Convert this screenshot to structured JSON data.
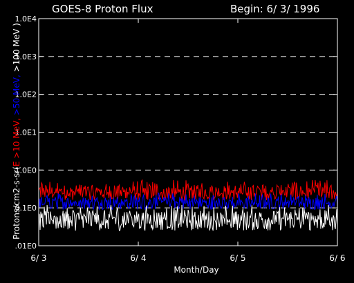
{
  "header": {
    "title": "GOES-8 Proton Flux",
    "begin_label": "Begin: 6/ 3/ 1996"
  },
  "chart_data": {
    "type": "line",
    "title": "GOES-8 Proton Flux",
    "xlabel": "Month/Day",
    "ylabel_parts": [
      {
        "text": "Protons/cm2-s-sr(",
        "color": "#ffffff"
      },
      {
        "text": "E >10 MeV, ",
        "color": "#ff0000"
      },
      {
        "text": ">50 MeV, ",
        "color": "#0000ff"
      },
      {
        "text": ">100 MeV )",
        "color": "#ffffff"
      }
    ],
    "yscale": "log",
    "ylim": [
      0.01,
      10000
    ],
    "yticks": [
      {
        "value": 10000,
        "label": "1.0E4"
      },
      {
        "value": 1000,
        "label": "1.0E3"
      },
      {
        "value": 100,
        "label": "1.0E2"
      },
      {
        "value": 10,
        "label": "1.0E1"
      },
      {
        "value": 1,
        "label": "1.0E0"
      },
      {
        "value": 0.1,
        "label": "0.1E0"
      },
      {
        "value": 0.01,
        "label": ".01E0"
      }
    ],
    "gridlines_at": [
      1000,
      100,
      10,
      1,
      0.1
    ],
    "grid_style": "dashed",
    "xlim_days": [
      0,
      3
    ],
    "xticks": [
      {
        "value": 0,
        "label": "6/ 3"
      },
      {
        "value": 1,
        "label": "6/ 4"
      },
      {
        "value": 2,
        "label": "6/ 5"
      },
      {
        "value": 3,
        "label": "6/ 6"
      }
    ],
    "series": [
      {
        "name": "E >10 MeV",
        "color": "#ff0000",
        "base": 0.26,
        "low": 0.16,
        "high": 0.55
      },
      {
        "name": ">50 MeV",
        "color": "#0000ff",
        "base": 0.14,
        "low": 0.09,
        "high": 0.25
      },
      {
        "name": ">100 MeV",
        "color": "#ffffff",
        "base": 0.05,
        "low": 0.025,
        "high": 0.12
      }
    ]
  }
}
